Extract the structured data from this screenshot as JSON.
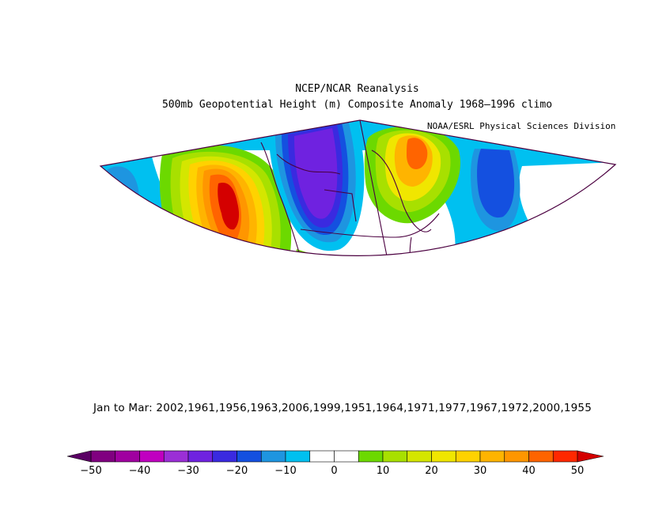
{
  "title": "NCEP/NCAR Reanalysis",
  "subtitle": "500mb Geopotential Height (m) Composite Anomaly 1968–1996 climo",
  "credit": "NOAA/ESRL Physical Sciences Division",
  "dates_line": "Jan to Mar: 2002,1961,1956,1963,2006,1999,1951,1964,1971,1977,1967,1972,2000,1955",
  "colorbar": {
    "colors": [
      "#800080",
      "#a000a0",
      "#c000c0",
      "#9b2fd6",
      "#6f22e0",
      "#3a2ae0",
      "#1450e0",
      "#1e95e0",
      "#00c0f0",
      "#ffffff",
      "#ffffff",
      "#6cd900",
      "#a8e000",
      "#d4e600",
      "#f0e600",
      "#ffd200",
      "#ffb400",
      "#ff9600",
      "#ff6400",
      "#ff2800"
    ],
    "low_color": "#5a0064",
    "high_color": "#d40000",
    "ticks": [
      "−50",
      "−40",
      "−30",
      "−20",
      "−10",
      "0",
      "10",
      "20",
      "30",
      "40",
      "50"
    ]
  },
  "map_colors": {
    "lightblue": "#00c0f0",
    "blue": "#1450e0",
    "midblue": "#1e95e0",
    "purple": "#6f22e0",
    "violet": "#3a2ae0",
    "green": "#6cd900",
    "yellowgreen": "#a8e000",
    "yellow": "#f0e600",
    "orange": "#ff9600",
    "red": "#ff2800",
    "darkred": "#d40000",
    "coast": "#4b0040"
  }
}
